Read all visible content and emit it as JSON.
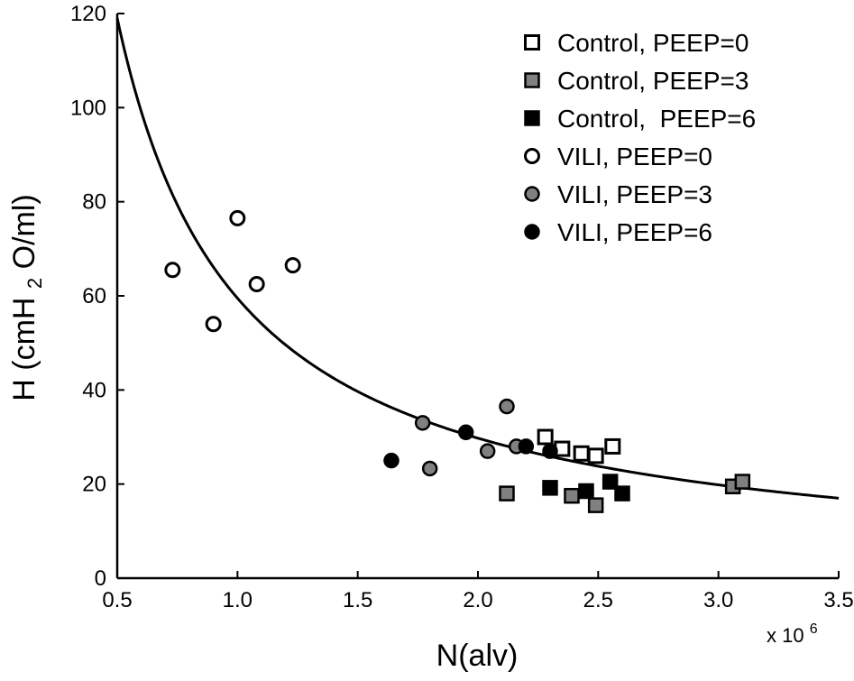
{
  "chart_data": {
    "type": "scatter",
    "xlabel": "N(alv)",
    "ylabel_parts": [
      "H (cmH",
      "2",
      "O/ml)"
    ],
    "x_multiplier_base": "x 10",
    "x_multiplier_exp": "6",
    "xlim": [
      0.5,
      3.5
    ],
    "ylim": [
      0,
      120
    ],
    "x_ticks": [
      {
        "value": 0.5,
        "label": "0.5"
      },
      {
        "value": 1.0,
        "label": "1.0"
      },
      {
        "value": 1.5,
        "label": "1.5"
      },
      {
        "value": 2.0,
        "label": "2.0"
      },
      {
        "value": 2.5,
        "label": "2.5"
      },
      {
        "value": 3.0,
        "label": "3.0"
      },
      {
        "value": 3.5,
        "label": "3.5"
      }
    ],
    "y_ticks": [
      {
        "value": 0,
        "label": "0"
      },
      {
        "value": 20,
        "label": "20"
      },
      {
        "value": 40,
        "label": "40"
      },
      {
        "value": 60,
        "label": "60"
      },
      {
        "value": 80,
        "label": "80"
      },
      {
        "value": 100,
        "label": "100"
      },
      {
        "value": 120,
        "label": "120"
      }
    ],
    "legend_position": "top-right",
    "fit_curve": {
      "formula": "H = k / N",
      "k": 59.5
    },
    "series": [
      {
        "name": "Control, PEEP=0",
        "marker": "square",
        "fill": "#ffffff",
        "stroke": "#000000",
        "points": [
          [
            2.28,
            30
          ],
          [
            2.35,
            27.5
          ],
          [
            2.43,
            26.5
          ],
          [
            2.49,
            26
          ],
          [
            2.56,
            28
          ]
        ]
      },
      {
        "name": "Control, PEEP=3",
        "marker": "square",
        "fill": "#808080",
        "stroke": "#000000",
        "points": [
          [
            2.12,
            18
          ],
          [
            2.39,
            17.5
          ],
          [
            2.49,
            15.5
          ],
          [
            3.06,
            19.5
          ],
          [
            3.1,
            20.5
          ]
        ]
      },
      {
        "name": "Control,  PEEP=6",
        "marker": "square",
        "fill": "#000000",
        "stroke": "#000000",
        "points": [
          [
            2.3,
            19.2
          ],
          [
            2.45,
            18.5
          ],
          [
            2.55,
            20.5
          ],
          [
            2.6,
            18
          ]
        ]
      },
      {
        "name": "VILI, PEEP=0",
        "marker": "circle",
        "fill": "#ffffff",
        "stroke": "#000000",
        "points": [
          [
            0.73,
            65.5
          ],
          [
            0.9,
            54
          ],
          [
            1.0,
            76.5
          ],
          [
            1.08,
            62.5
          ],
          [
            1.23,
            66.5
          ]
        ]
      },
      {
        "name": "VILI, PEEP=3",
        "marker": "circle",
        "fill": "#808080",
        "stroke": "#000000",
        "points": [
          [
            1.77,
            33
          ],
          [
            1.8,
            23.3
          ],
          [
            2.04,
            27
          ],
          [
            2.12,
            36.5
          ],
          [
            2.16,
            28
          ]
        ]
      },
      {
        "name": "VILI, PEEP=6",
        "marker": "circle",
        "fill": "#000000",
        "stroke": "#000000",
        "points": [
          [
            1.64,
            25
          ],
          [
            1.95,
            31
          ],
          [
            2.2,
            28
          ],
          [
            2.3,
            27
          ]
        ]
      }
    ]
  }
}
